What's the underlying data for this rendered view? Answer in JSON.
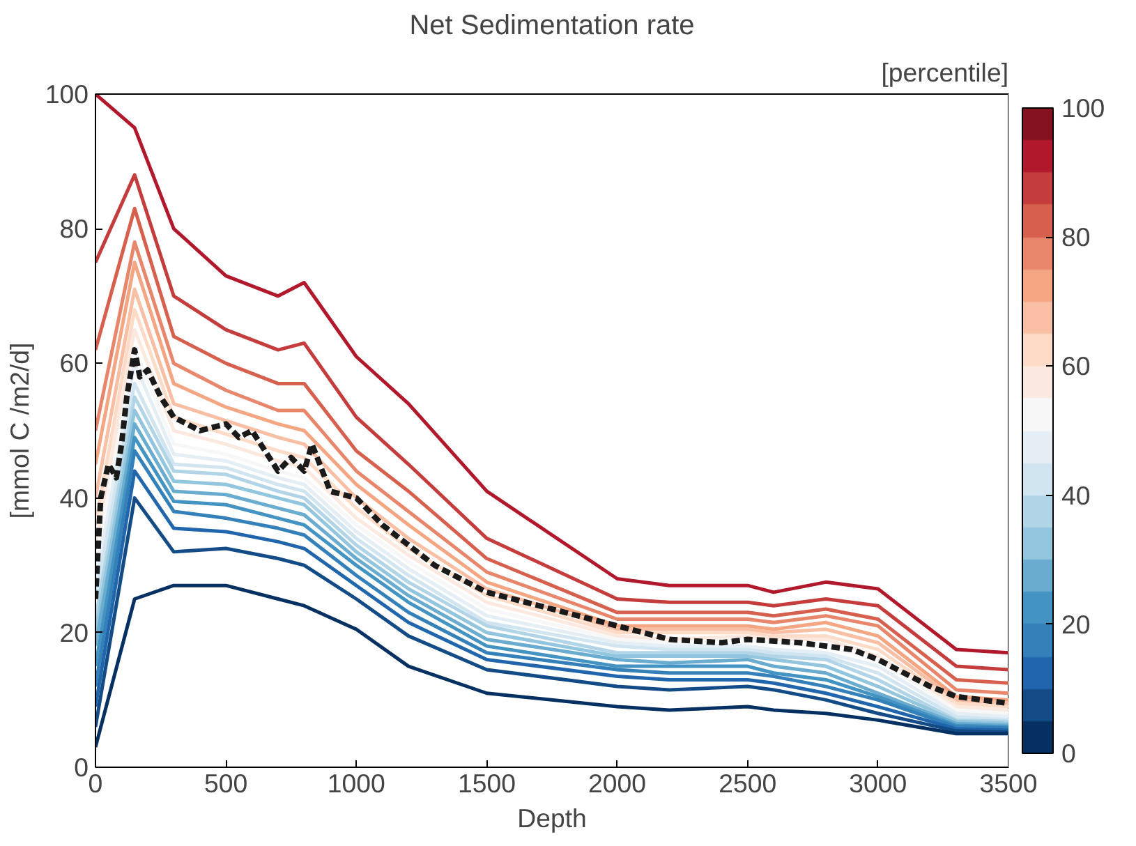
{
  "chart_data": {
    "type": "line",
    "title": "Net Sedimentation rate",
    "xlabel": "Depth",
    "ylabel": "[mmol C /m2/d]",
    "clabel": "[percentile]",
    "x": [
      0,
      150,
      300,
      500,
      700,
      800,
      1000,
      1200,
      1500,
      2000,
      2200,
      2500,
      2600,
      2800,
      3000,
      3300,
      3500
    ],
    "xlim": [
      0,
      3500
    ],
    "xticks": [
      0,
      500,
      1000,
      1500,
      2000,
      2500,
      3000,
      3500
    ],
    "ylim": [
      0,
      100
    ],
    "yticks": [
      0,
      20,
      40,
      60,
      80,
      100
    ],
    "clim": [
      0,
      100
    ],
    "cticks": [
      0,
      20,
      40,
      60,
      80,
      100
    ],
    "grid": false,
    "line_style": "solid",
    "series": [
      {
        "color": "#b2182b",
        "values": [
          100,
          95,
          80,
          73,
          70,
          72,
          61,
          54,
          41,
          28,
          27,
          27,
          26,
          27.5,
          26.5,
          17.5,
          17
        ]
      },
      {
        "color": "#c43c3c",
        "values": [
          75,
          88,
          70,
          65,
          62,
          63,
          52,
          45,
          34,
          25,
          24.5,
          24.5,
          24,
          25,
          24,
          15,
          14.5
        ]
      },
      {
        "color": "#d6604d",
        "values": [
          62,
          83,
          64,
          60,
          57,
          57,
          47,
          41,
          31,
          23,
          23,
          23,
          22.5,
          23.5,
          22,
          13,
          12.5
        ]
      },
      {
        "color": "#e8866b",
        "values": [
          50,
          78,
          60,
          56,
          53,
          53,
          44,
          38,
          29,
          22,
          22,
          22,
          21.5,
          22.5,
          21,
          11.5,
          11
        ]
      },
      {
        "color": "#f4a582",
        "values": [
          45,
          75,
          57,
          53.5,
          51,
          50,
          42,
          36,
          27.5,
          21,
          21,
          21,
          20.5,
          21.5,
          19.5,
          10.5,
          10
        ]
      },
      {
        "color": "#f8bfa4",
        "values": [
          40,
          71,
          54,
          51.5,
          49,
          48,
          40,
          34,
          26.5,
          20.5,
          20.5,
          20.5,
          20,
          20.5,
          18.5,
          10,
          9.5
        ]
      },
      {
        "color": "#fddbc7",
        "values": [
          36,
          68,
          52,
          49.5,
          47,
          46,
          38.5,
          32.5,
          25.5,
          20,
          20,
          20,
          19.5,
          19.5,
          17.5,
          9.5,
          9
        ]
      },
      {
        "color": "#fbe8de",
        "values": [
          33,
          65,
          50,
          48,
          45.5,
          44.5,
          37,
          31.5,
          24.5,
          19.5,
          19,
          19.5,
          19,
          19,
          16.5,
          9,
          8.5
        ]
      },
      {
        "color": "#f7f7f7",
        "values": [
          30,
          62,
          48,
          46.5,
          44,
          43,
          36,
          30.5,
          23.5,
          19,
          18.5,
          19,
          18.5,
          18,
          16,
          8.5,
          8
        ]
      },
      {
        "color": "#e4eef4",
        "values": [
          27,
          60,
          46.5,
          45.5,
          43,
          42,
          35,
          29.5,
          22.5,
          18.5,
          18,
          18,
          17.5,
          17,
          15,
          8,
          7.5
        ]
      },
      {
        "color": "#d1e5f0",
        "values": [
          25,
          57,
          45,
          44.5,
          42,
          41,
          34,
          28.5,
          21.5,
          18,
          17.5,
          17.5,
          17,
          16.5,
          14,
          7.5,
          7
        ]
      },
      {
        "color": "#b1d5e7",
        "values": [
          22,
          55,
          44,
          43.5,
          41,
          40,
          33,
          27.5,
          21,
          17,
          17,
          17,
          16.5,
          16,
          13,
          7,
          6.8
        ]
      },
      {
        "color": "#92c5de",
        "values": [
          20,
          53,
          42.5,
          42,
          40,
          39,
          32,
          26.5,
          20,
          16.5,
          16.5,
          16.5,
          16,
          15,
          12,
          6.8,
          6.5
        ]
      },
      {
        "color": "#6aacd0",
        "values": [
          18,
          51,
          41,
          40.5,
          38.5,
          37.5,
          31,
          25.5,
          19,
          16,
          15.5,
          16,
          15,
          14,
          11,
          6.5,
          6.2
        ]
      },
      {
        "color": "#4393c3",
        "values": [
          15,
          49,
          39.5,
          39,
          37,
          36,
          30,
          24.5,
          18,
          15,
          15,
          15,
          14,
          13,
          10.5,
          6.2,
          6
        ]
      },
      {
        "color": "#3480b9",
        "values": [
          12,
          47,
          38,
          37,
          35.5,
          34.5,
          28.5,
          23,
          17,
          14.5,
          14,
          14,
          13.5,
          12,
          10,
          6,
          5.8
        ]
      },
      {
        "color": "#2166ac",
        "values": [
          9,
          44,
          35.5,
          35,
          33.5,
          32.5,
          27,
          21.5,
          16,
          13.5,
          13,
          13,
          12.5,
          11,
          9,
          5.7,
          5.5
        ]
      },
      {
        "color": "#134b87",
        "values": [
          6,
          40,
          32,
          32.5,
          31,
          30,
          25,
          19.5,
          14.5,
          12,
          11.5,
          12,
          11.5,
          10,
          8,
          5.4,
          5.2
        ]
      },
      {
        "color": "#053061",
        "values": [
          3,
          25,
          27,
          27,
          25,
          24,
          20.5,
          15,
          11,
          9,
          8.5,
          9,
          8.5,
          8,
          7,
          5,
          5
        ]
      },
      {
        "color": "#1a1a1a",
        "line_style": "dashed",
        "x": [
          0,
          20,
          50,
          80,
          100,
          120,
          150,
          170,
          200,
          250,
          300,
          400,
          500,
          550,
          600,
          650,
          700,
          750,
          800,
          830,
          870,
          900,
          1000,
          1100,
          1200,
          1300,
          1500,
          1800,
          2000,
          2200,
          2400,
          2500,
          2700,
          2900,
          3000,
          3200,
          3300,
          3500
        ],
        "values": [
          25,
          40,
          45,
          43,
          48,
          55,
          62,
          58,
          59,
          55,
          52,
          50,
          51,
          49,
          50,
          47,
          44,
          46,
          44,
          48,
          44,
          41,
          40,
          36,
          33,
          30,
          26,
          23,
          21,
          19,
          18.5,
          19,
          18.5,
          17.5,
          16,
          12,
          10.5,
          9.5
        ]
      }
    ]
  }
}
